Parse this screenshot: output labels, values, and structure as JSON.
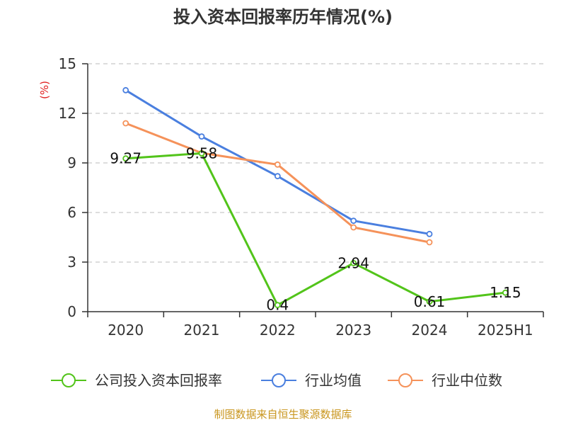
{
  "colors": {
    "company": "#52c41a",
    "industry_avg": "#4a7fdf",
    "industry_median": "#f5925a",
    "unit": "#e02020",
    "source": "#c9961e"
  },
  "chart_data": {
    "type": "line",
    "title": "投入资本回报率历年情况(%)",
    "ylabel": "(%)",
    "xlabel": "",
    "categories": [
      "2020",
      "2021",
      "2022",
      "2023",
      "2024",
      "2025H1"
    ],
    "y_ticks": [
      "0",
      "3",
      "6",
      "9",
      "12",
      "15"
    ],
    "ylim": [
      0,
      15
    ],
    "grid": true,
    "legend_position": "bottom",
    "series": [
      {
        "name": "公司投入资本回报率",
        "values": [
          9.27,
          9.58,
          0.4,
          2.94,
          0.61,
          1.15
        ],
        "labels": [
          "9.27",
          "9.58",
          "0.4",
          "2.94",
          "0.61",
          "1.15"
        ]
      },
      {
        "name": "行业均值",
        "values": [
          13.4,
          10.6,
          8.2,
          5.5,
          4.7,
          null
        ]
      },
      {
        "name": "行业中位数",
        "values": [
          11.4,
          9.6,
          8.9,
          5.1,
          4.2,
          null
        ]
      }
    ]
  },
  "source": "制图数据来自恒生聚源数据库"
}
